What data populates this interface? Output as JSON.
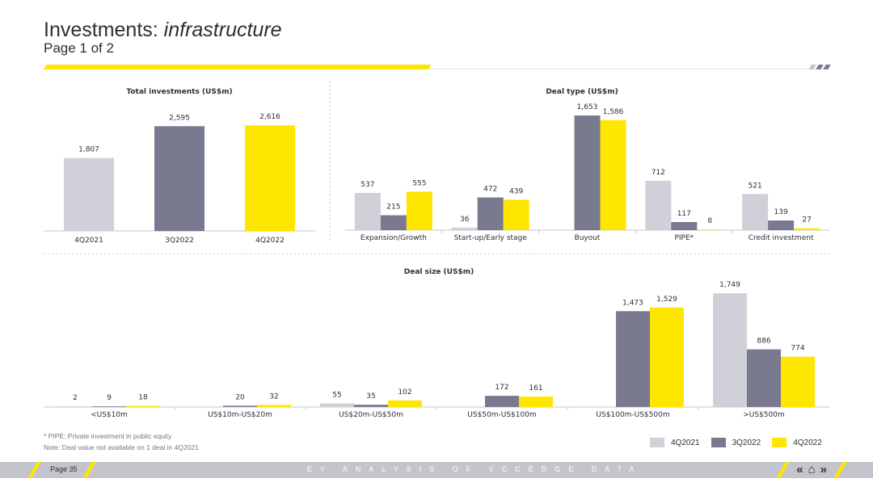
{
  "header": {
    "title_plain": "Investments: ",
    "title_italic": "infrastructure",
    "subtitle": "Page 1 of 2"
  },
  "colors": {
    "q1": "#d0d0d9",
    "q2": "#797990",
    "q3": "#ffe600",
    "text": "#2e2e38",
    "axis": "#c4c4cd"
  },
  "chart_data": [
    {
      "type": "bar",
      "title": "Total investments (US$m)",
      "categories": [
        "4Q2021",
        "3Q2022",
        "4Q2022"
      ],
      "values": [
        1807,
        2595,
        2616
      ],
      "value_labels": [
        "1,807",
        "2,595",
        "2,616"
      ],
      "ylim": [
        0,
        3000
      ]
    },
    {
      "type": "bar",
      "title": "Deal type (US$m)",
      "categories": [
        "Expansion/Growth",
        "Start-up/Early stage",
        "Buyout",
        "PIPE*",
        "Credit investment"
      ],
      "series": [
        {
          "name": "4Q2021",
          "values": [
            537,
            36,
            null,
            712,
            521
          ],
          "labels": [
            "537",
            "36",
            "",
            "712",
            "521"
          ]
        },
        {
          "name": "3Q2022",
          "values": [
            215,
            472,
            1653,
            117,
            139
          ],
          "labels": [
            "215",
            "472",
            "1,653",
            "117",
            "139"
          ]
        },
        {
          "name": "4Q2022",
          "values": [
            555,
            439,
            1586,
            8,
            27
          ],
          "labels": [
            "555",
            "439",
            "1,586",
            "8",
            "27"
          ]
        }
      ],
      "ylim": [
        0,
        1700
      ]
    },
    {
      "type": "bar",
      "title": "Deal size (US$m)",
      "categories": [
        "<US$10m",
        "US$10m-US$20m",
        "US$20m-US$50m",
        "US$50m-US$100m",
        "US$100m-US$500m",
        ">US$500m"
      ],
      "series": [
        {
          "name": "4Q2021",
          "values": [
            2,
            null,
            55,
            null,
            null,
            1749
          ],
          "labels": [
            "2",
            "",
            "55",
            "",
            "",
            "1,749"
          ]
        },
        {
          "name": "3Q2022",
          "values": [
            9,
            20,
            35,
            172,
            1473,
            886
          ],
          "labels": [
            "9",
            "20",
            "35",
            "172",
            "1,473",
            "886"
          ]
        },
        {
          "name": "4Q2022",
          "values": [
            18,
            32,
            102,
            161,
            1529,
            774
          ],
          "labels": [
            "18",
            "32",
            "102",
            "161",
            "1,529",
            "774"
          ]
        }
      ],
      "ylim": [
        0,
        1800
      ]
    }
  ],
  "legend": [
    "4Q2021",
    "3Q2022",
    "4Q2022"
  ],
  "footnotes": {
    "pipe": "* PIPE: Private investment in public equity",
    "note": "Note: Deal value not available on 1 deal in 4Q2021"
  },
  "footer": {
    "page": "Page 35",
    "brand": "EY ANALYSIS OF VCCEDGE DATA",
    "nav_prev": "«",
    "nav_home": "⌂",
    "nav_next": "»"
  }
}
